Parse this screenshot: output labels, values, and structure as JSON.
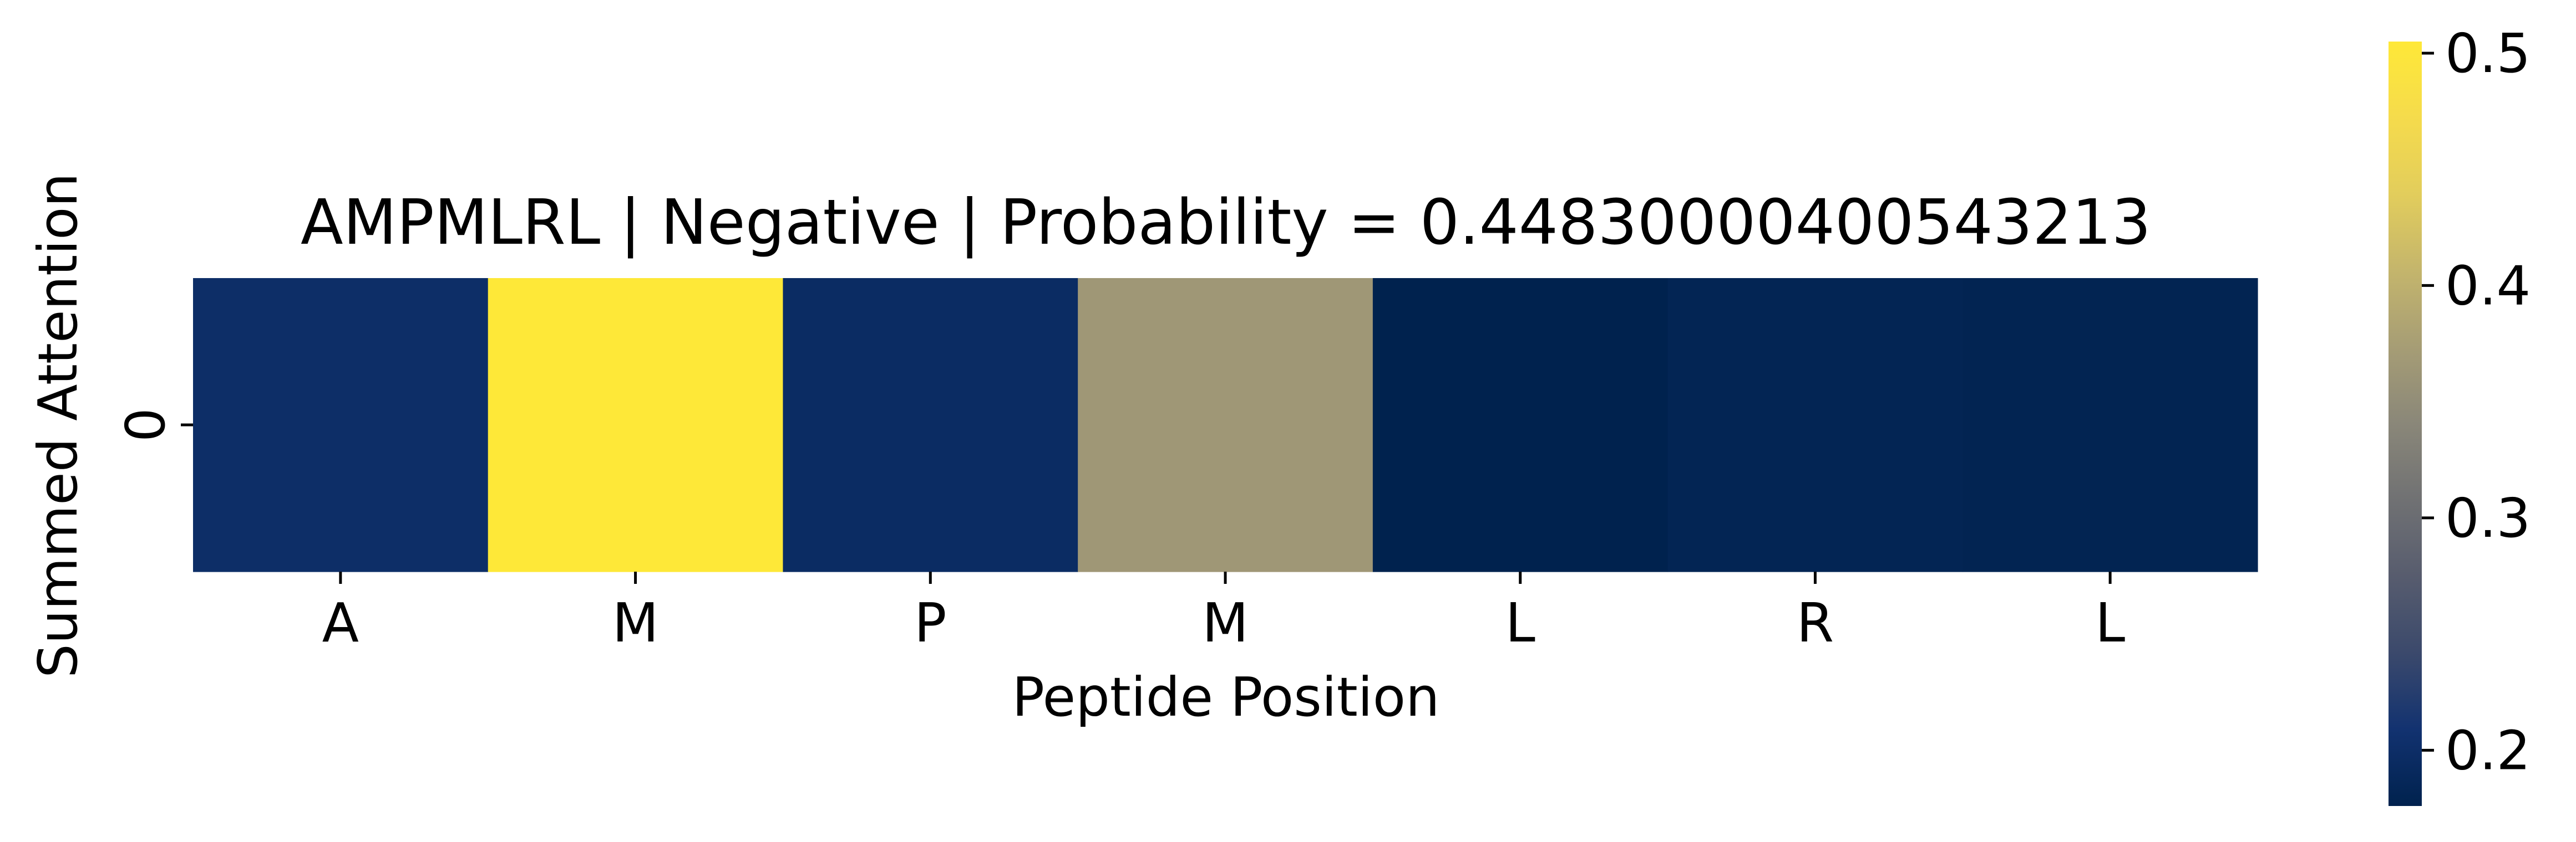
{
  "chart_data": {
    "type": "heatmap",
    "title": "AMPMLRL | Negative | Probability = 0.44830000400543213",
    "xlabel": "Peptide Position",
    "ylabel": "Summed Attention",
    "x_categories": [
      "A",
      "M",
      "P",
      "M",
      "L",
      "R",
      "L"
    ],
    "y_categories": [
      "0"
    ],
    "values": [
      [
        0.2,
        0.505,
        0.196,
        0.365,
        0.176,
        0.182,
        0.18
      ]
    ],
    "colormap": "cividis",
    "colorbar": {
      "vmin": 0.176,
      "vmax": 0.505,
      "ticks": [
        0.2,
        0.3,
        0.4,
        0.5
      ],
      "tick_labels": [
        "0.2",
        "0.3",
        "0.4",
        "0.5"
      ]
    },
    "grid": false,
    "legend": "none",
    "colors": {
      "cmap_low": "#00224e",
      "cmap_mid": "#7c7b78",
      "cmap_high": "#fee838",
      "axis_line": "#000000"
    }
  }
}
